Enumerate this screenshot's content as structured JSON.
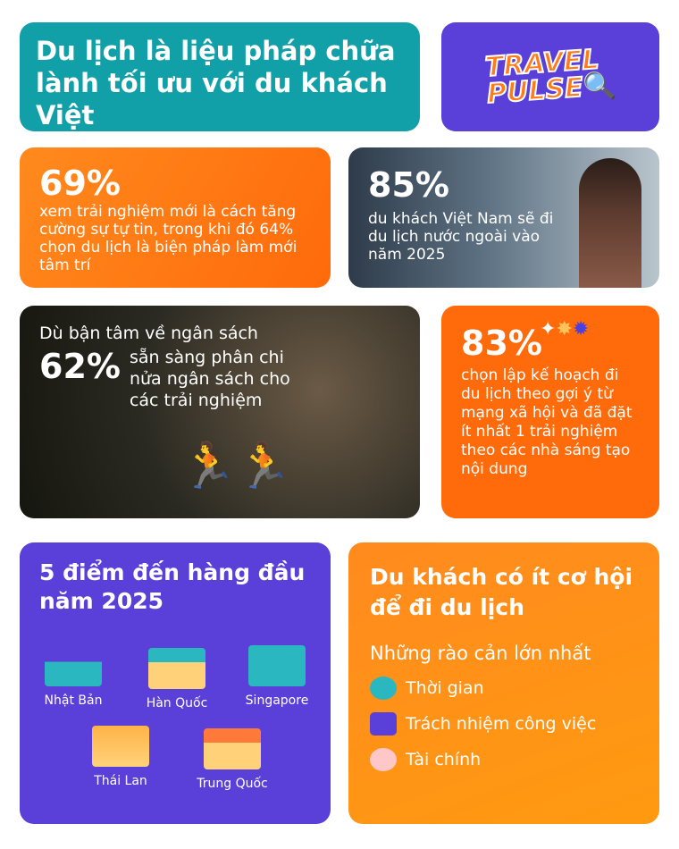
{
  "title": "Du lịch là liệu pháp chữa lành tối ưu với du khách Việt",
  "logo": {
    "line1": "TRAVEL",
    "line2": "PULSE"
  },
  "stat69": {
    "value": "69%",
    "text": "xem trải nghiệm mới là cách tăng cường sự tự tin, trong khi đó 64% chọn du lịch là biện pháp làm mới tâm trí"
  },
  "stat85": {
    "value": "85%",
    "text": "du khách Việt Nam sẽ đi du lịch nước ngoài vào năm 2025"
  },
  "stat62": {
    "lead": "Dù bận tâm về ngân sách",
    "value": "62%",
    "text": "sẵn sàng phân chi nửa ngân sách cho các trải nghiệm"
  },
  "stat83": {
    "value": "83%",
    "text": "chọn lập kế hoạch đi du lịch theo gợi ý từ mạng xã hội và đã đặt ít nhất 1 trải nghiệm theo các nhà sáng tạo nội dung"
  },
  "destinations": {
    "title": "5 điểm đến hàng đầu năm 2025",
    "items": [
      "Nhật Bản",
      "Hàn Quốc",
      "Singapore",
      "Thái Lan",
      "Trung Quốc"
    ]
  },
  "barriers": {
    "title": "Du khách có ít cơ hội để đi du lịch",
    "subtitle": "Những rào cản lớn nhất",
    "items": [
      {
        "label": "Thời gian",
        "icon": "stopwatch-icon"
      },
      {
        "label": "Trách nhiệm công việc",
        "icon": "laptop-icon"
      },
      {
        "label": "Tài chính",
        "icon": "piggy-bank-icon"
      }
    ]
  },
  "colors": {
    "teal": "#12a0a8",
    "purple": "#5a3fd8",
    "orange": "#ff6a0a"
  }
}
